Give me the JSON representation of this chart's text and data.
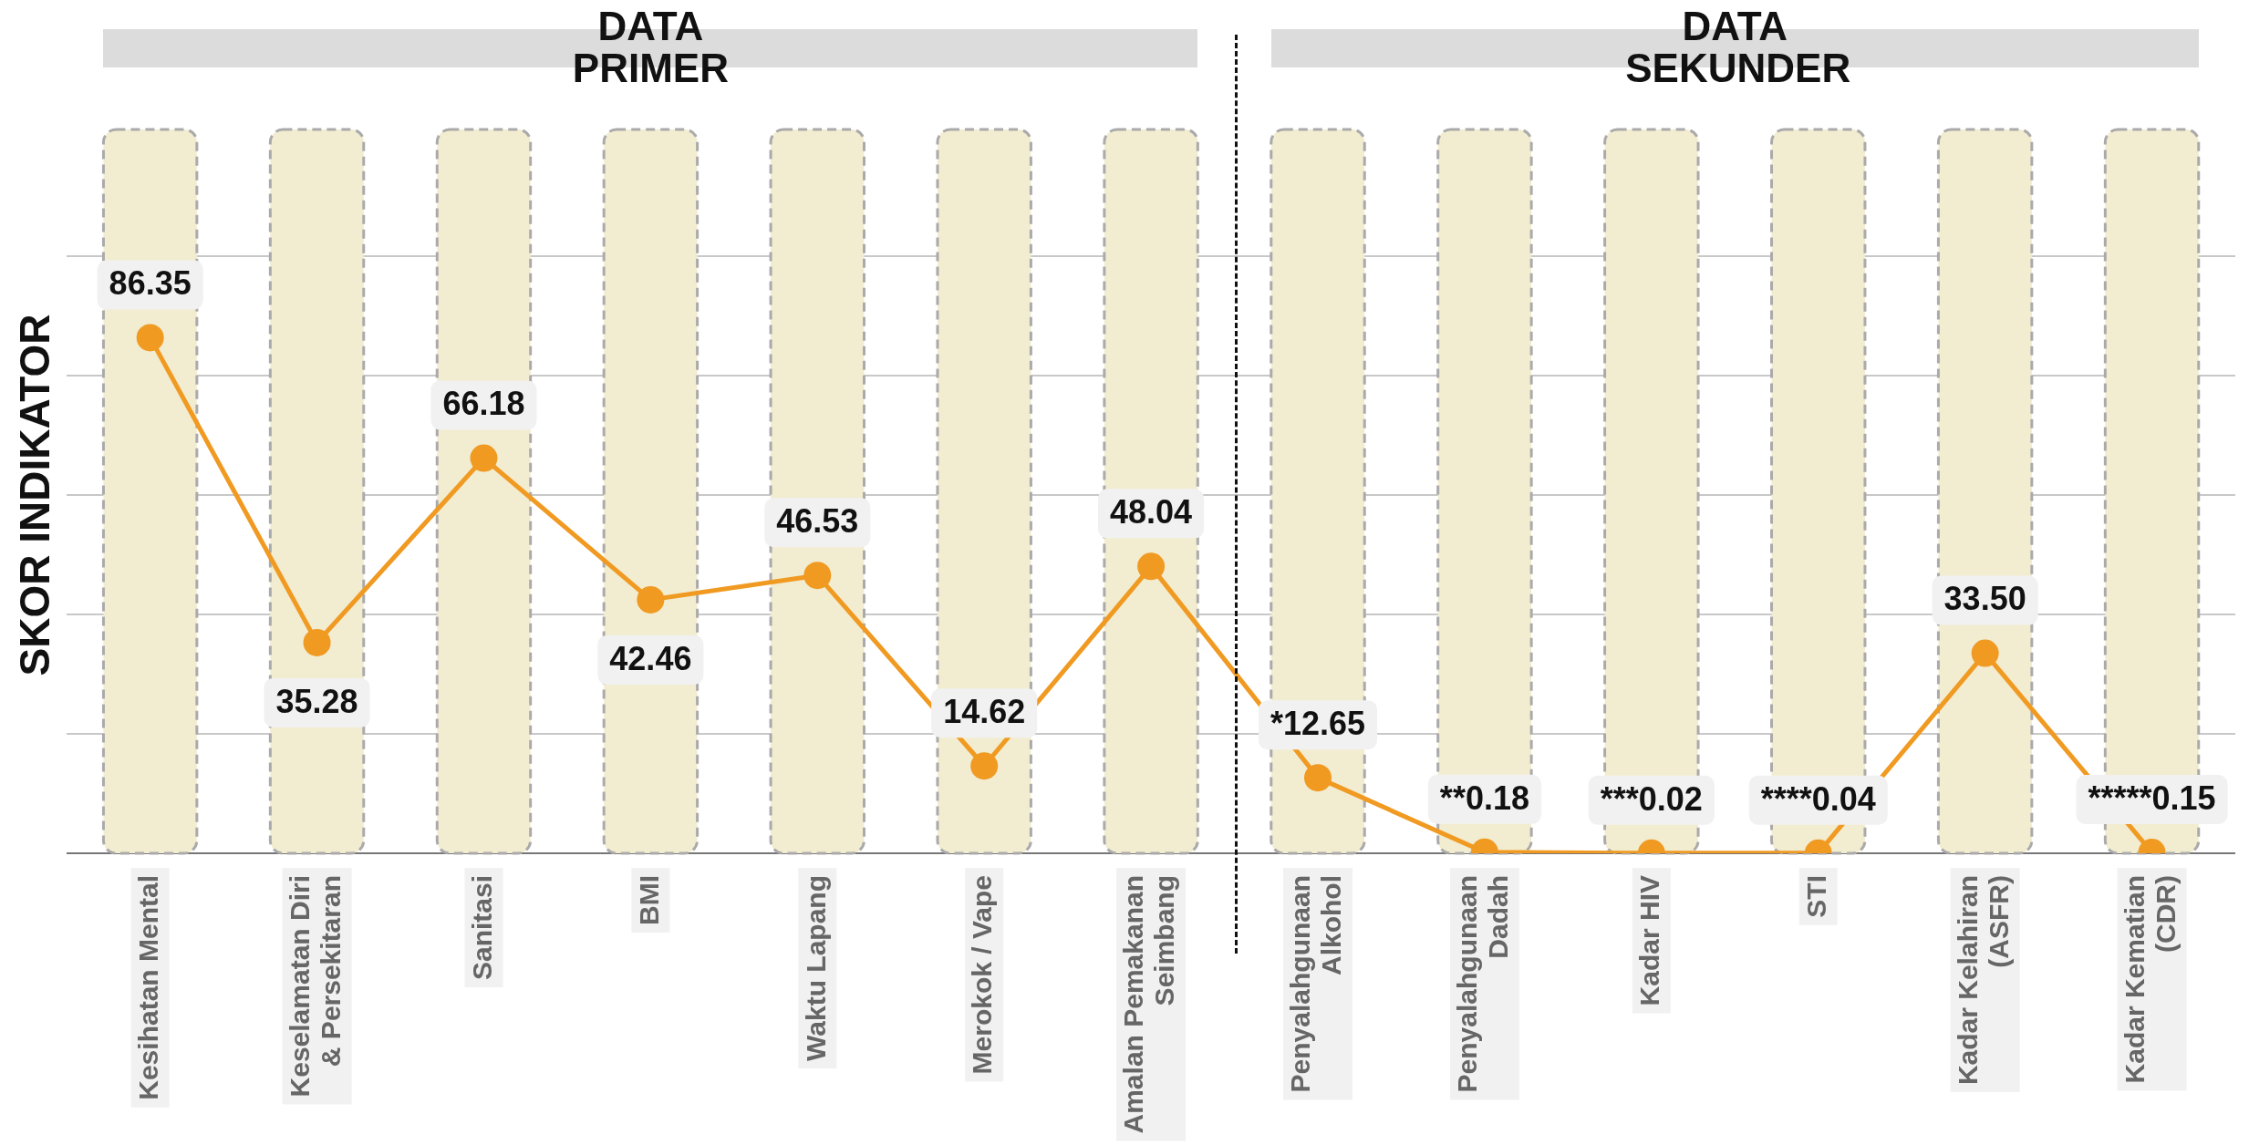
{
  "chart_data": {
    "type": "line",
    "ylabel": "SKOR INDIKATOR",
    "annotations": [
      "DATA PRIMER",
      "DATA SEKUNDER"
    ],
    "categories": [
      "Kesihatan Mental",
      "Keselamatan Diri & Persekitaran",
      "Sanitasi",
      "BMI",
      "Waktu Lapang",
      "Merokok / Vape",
      "Amalan Pemakanan Seimbang",
      "Penyalahgunaan Alkohol",
      "Penyalahgunaan Dadah",
      "Kadar HIV",
      "STI",
      "Kadar Kelahiran (ASFR)",
      "Kadar Kematian (CDR)"
    ],
    "values": [
      86.35,
      35.28,
      66.18,
      42.46,
      46.53,
      14.62,
      48.04,
      12.65,
      0.18,
      0.02,
      0.04,
      33.5,
      0.15
    ],
    "value_labels": [
      "86.35",
      "35.28",
      "66.18",
      "42.46",
      "46.53",
      "14.62",
      "48.04",
      "*12.65",
      "**0.18",
      "***0.02",
      "****0.04",
      "33.50",
      "*****0.15"
    ],
    "color": "#f09a22",
    "marker": "circle",
    "bands": [
      {
        "axis": "x",
        "from": "Kesihatan Mental",
        "to": "Kesihatan Mental",
        "color": "#f2ecd0"
      },
      {
        "axis": "x",
        "from": "Keselamatan Diri & Persekitaran",
        "to": "Keselamatan Diri & Persekitaran",
        "color": "#f2ecd0"
      },
      {
        "axis": "x",
        "from": "Sanitasi",
        "to": "Sanitasi",
        "color": "#f2ecd0"
      },
      {
        "axis": "x",
        "from": "BMI",
        "to": "BMI",
        "color": "#f2ecd0"
      },
      {
        "axis": "x",
        "from": "Waktu Lapang",
        "to": "Waktu Lapang",
        "color": "#f2ecd0"
      },
      {
        "axis": "x",
        "from": "Merokok / Vape",
        "to": "Merokok / Vape",
        "color": "#f2ecd0"
      },
      {
        "axis": "x",
        "from": "Amalan Pemakanan Seimbang",
        "to": "Amalan Pemakanan Seimbang",
        "color": "#f2ecd0"
      },
      {
        "axis": "x",
        "from": "Penyalahgunaan Alkohol",
        "to": "Penyalahgunaan Alkohol",
        "color": "#f2ecd0"
      },
      {
        "axis": "x",
        "from": "Penyalahgunaan Dadah",
        "to": "Penyalahgunaan Dadah",
        "color": "#f2ecd0"
      },
      {
        "axis": "x",
        "from": "Kadar HIV",
        "to": "Kadar HIV",
        "color": "#f2ecd0"
      },
      {
        "axis": "x",
        "from": "STI",
        "to": "STI",
        "color": "#f2ecd0"
      },
      {
        "axis": "x",
        "from": "Kadar Kelahiran (ASFR)",
        "to": "Kadar Kelahiran (ASFR)",
        "color": "#f2ecd0"
      },
      {
        "axis": "x",
        "from": "Kadar Kematian (CDR)",
        "to": "Kadar Kematian (CDR)",
        "color": "#f2ecd0"
      }
    ],
    "yticks": [
      {
        "value": 0,
        "label": null
      },
      {
        "value": 20,
        "label": null
      },
      {
        "value": 40,
        "label": null
      },
      {
        "value": 60,
        "label": null
      },
      {
        "value": 80,
        "label": null
      },
      {
        "value": 100,
        "label": null
      }
    ],
    "grid": "y",
    "tick_labels": "x"
  }
}
